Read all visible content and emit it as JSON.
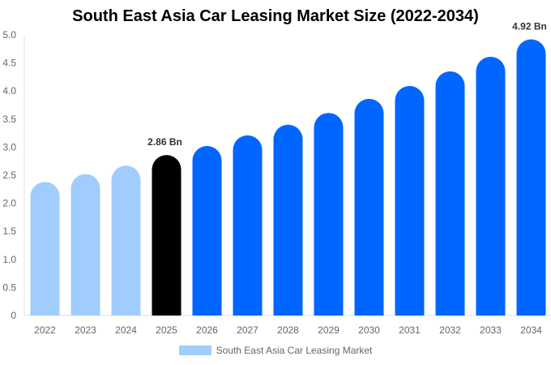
{
  "chart_data": {
    "type": "bar",
    "title": "South East Asia Car Leasing Market Size (2022-2034)",
    "categories": [
      "2022",
      "2023",
      "2024",
      "2025",
      "2026",
      "2027",
      "2028",
      "2029",
      "2030",
      "2031",
      "2032",
      "2033",
      "2034"
    ],
    "series": [
      {
        "name": "South East Asia Car Leasing Market",
        "values": [
          2.38,
          2.52,
          2.67,
          2.86,
          3.02,
          3.21,
          3.4,
          3.61,
          3.86,
          4.09,
          4.35,
          4.61,
          4.92
        ]
      }
    ],
    "data_labels": {
      "3": "2.86 Bn",
      "12": "4.92 Bn"
    },
    "ylim": [
      0,
      5
    ],
    "yticks": [
      "0",
      "0.5",
      "1.0",
      "1.5",
      "2.0",
      "2.5",
      "3.0",
      "3.5",
      "4.0",
      "4.5",
      "5.0"
    ],
    "grid": false,
    "legend": "bottom",
    "colors": {
      "historical": "#a0cdfd",
      "base_year": "#000000",
      "forecast": "#0066ff"
    }
  }
}
